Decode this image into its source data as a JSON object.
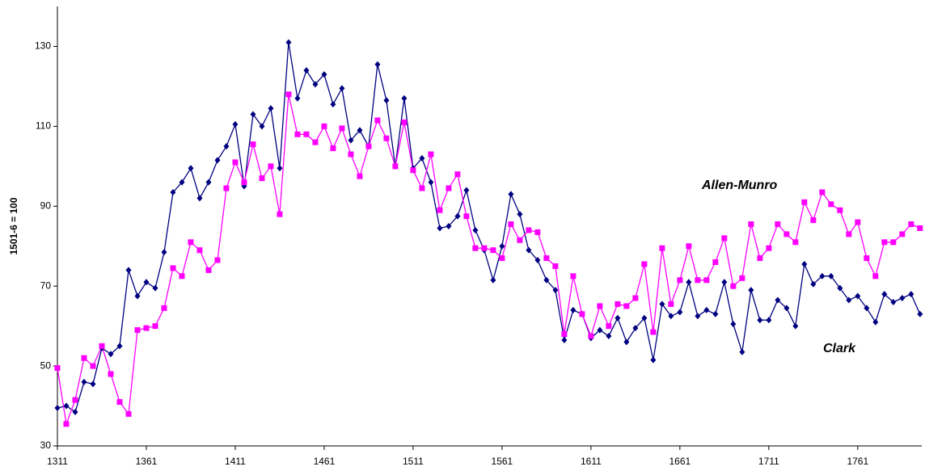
{
  "chart_data": {
    "type": "line",
    "y_label": "1501-6 = 100",
    "x": [
      1311,
      1316,
      1321,
      1326,
      1331,
      1336,
      1341,
      1346,
      1351,
      1356,
      1361,
      1366,
      1371,
      1376,
      1381,
      1386,
      1391,
      1396,
      1401,
      1406,
      1411,
      1416,
      1421,
      1426,
      1431,
      1436,
      1441,
      1446,
      1451,
      1456,
      1461,
      1466,
      1471,
      1476,
      1481,
      1486,
      1491,
      1496,
      1501,
      1506,
      1511,
      1516,
      1521,
      1526,
      1531,
      1536,
      1541,
      1546,
      1551,
      1556,
      1561,
      1566,
      1571,
      1576,
      1581,
      1586,
      1591,
      1596,
      1601,
      1606,
      1611,
      1616,
      1621,
      1626,
      1631,
      1636,
      1641,
      1646,
      1651,
      1656,
      1661,
      1666,
      1671,
      1676,
      1681,
      1686,
      1691,
      1696,
      1701,
      1706,
      1711,
      1716,
      1721,
      1726,
      1731,
      1736,
      1741,
      1746,
      1751,
      1756,
      1761,
      1766,
      1771,
      1776,
      1781,
      1786,
      1791,
      1796
    ],
    "series": [
      {
        "name": "Clark",
        "color": "#000080",
        "marker": "diamond",
        "values": [
          39.5,
          40,
          38.5,
          46,
          45.5,
          54.5,
          53,
          55,
          74,
          67.5,
          71,
          69.5,
          78.5,
          93.5,
          96,
          99.5,
          92,
          96,
          101.5,
          105,
          110.5,
          95,
          113,
          110,
          114.5,
          99.5,
          131,
          117,
          124,
          120.5,
          123,
          115.5,
          119.5,
          106.5,
          109,
          105,
          125.5,
          116.5,
          100,
          117,
          99.5,
          102,
          96,
          84.5,
          85,
          87.5,
          94,
          84,
          79,
          71.5,
          80,
          93,
          88,
          79,
          76.5,
          71.5,
          69,
          56.5,
          64,
          63,
          57,
          59,
          57.5,
          62,
          56,
          59.5,
          62,
          51.5,
          65.5,
          62.5,
          63.5,
          71,
          62.5,
          64,
          63,
          71,
          60.5,
          53.5,
          69,
          61.5,
          61.5,
          66.5,
          64.5,
          60,
          75.5,
          70.5,
          72.5,
          72.5,
          69.5,
          66.5,
          67.5,
          64.5,
          61,
          68,
          66,
          67,
          68,
          63
        ]
      },
      {
        "name": "Allen-Munro",
        "color": "#ff00ff",
        "marker": "square",
        "values": [
          49.5,
          35.5,
          41.5,
          52,
          50,
          55,
          48,
          41,
          38,
          59,
          59.5,
          60,
          64.5,
          74.5,
          72.5,
          81,
          79,
          74,
          76.5,
          94.5,
          101,
          96,
          105.5,
          97,
          100,
          88,
          118,
          108,
          108,
          106,
          110,
          104.5,
          109.5,
          103,
          97.5,
          105,
          111.5,
          107,
          100,
          111,
          99,
          94.5,
          103,
          89,
          94.5,
          98,
          87.5,
          79.5,
          79.5,
          79,
          77,
          85.5,
          81.5,
          84,
          83.5,
          77,
          75,
          58,
          72.5,
          63,
          57.5,
          65,
          60,
          65.5,
          65,
          67,
          75.5,
          58.5,
          79.5,
          65.5,
          71.5,
          80,
          71.5,
          71.5,
          76,
          82,
          70,
          72,
          85.5,
          77,
          79.5,
          85.5,
          83,
          81,
          91,
          86.5,
          93.5,
          90.5,
          89,
          83,
          86,
          77,
          72.5,
          81,
          81,
          83,
          85.5,
          84.5
        ]
      }
    ],
    "xlim": [
      1311,
      1797
    ],
    "xticks": [
      1311,
      1361,
      1411,
      1461,
      1511,
      1561,
      1611,
      1661,
      1711,
      1761
    ],
    "ylim": [
      30,
      140
    ],
    "yticks": [
      30,
      50,
      70,
      90,
      110,
      130
    ],
    "grid": false
  }
}
